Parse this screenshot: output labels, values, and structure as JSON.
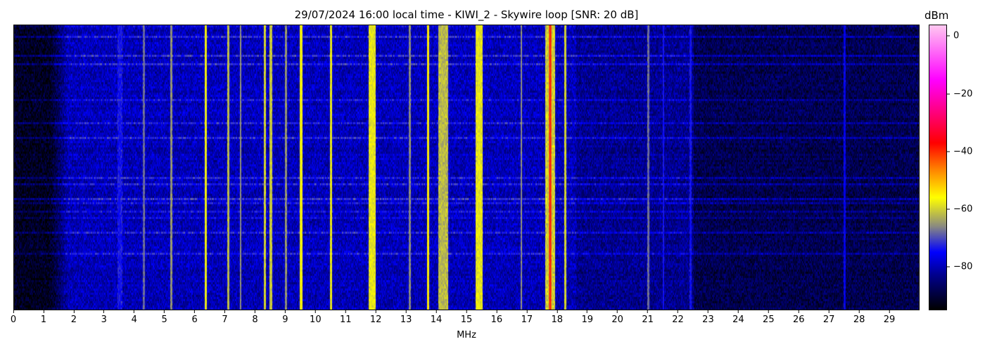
{
  "chart_data": {
    "type": "heatmap",
    "title": "29/07/2024 16:00 local time - KIWI_2 - Skywire loop [SNR: 20 dB]",
    "xlabel": "MHz",
    "colorbar_label": "dBm",
    "xlim": [
      0,
      30
    ],
    "x_ticks": [
      "0",
      "1",
      "2",
      "3",
      "4",
      "5",
      "6",
      "7",
      "8",
      "9",
      "10",
      "11",
      "12",
      "13",
      "14",
      "15",
      "16",
      "17",
      "18",
      "19",
      "20",
      "21",
      "22",
      "23",
      "24",
      "25",
      "26",
      "27",
      "28",
      "29"
    ],
    "color_range": [
      -95,
      4
    ],
    "colorbar_ticks": [
      "0",
      "-20",
      "-40",
      "-60",
      "-80"
    ],
    "colorbar_tick_values": [
      0,
      -20,
      -40,
      -60,
      -80
    ],
    "colormap": [
      {
        "value": -95,
        "color": "#000000"
      },
      {
        "value": -83,
        "color": "#00008c"
      },
      {
        "value": -75,
        "color": "#0000ff"
      },
      {
        "value": -66,
        "color": "#8a8a80"
      },
      {
        "value": -56,
        "color": "#ffff00"
      },
      {
        "value": -46,
        "color": "#ff8000"
      },
      {
        "value": -37,
        "color": "#ff0000"
      },
      {
        "value": -15,
        "color": "#ff00ff"
      },
      {
        "value": 4,
        "color": "#ffc8f0"
      }
    ],
    "noise_floor": [
      {
        "from_mhz": 0,
        "to_mhz": 1.8,
        "dbm": -92
      },
      {
        "from_mhz": 1.8,
        "to_mhz": 18.6,
        "dbm": -80
      },
      {
        "from_mhz": 18.6,
        "to_mhz": 22.5,
        "dbm": -83
      },
      {
        "from_mhz": 22.5,
        "to_mhz": 30,
        "dbm": -88
      }
    ],
    "signals": [
      {
        "mhz": 3.5,
        "width_mhz": 0.15,
        "dbm": -74
      },
      {
        "mhz": 4.3,
        "width_mhz": 0.03,
        "dbm": -68
      },
      {
        "mhz": 5.2,
        "width_mhz": 0.05,
        "dbm": -65
      },
      {
        "mhz": 6.35,
        "width_mhz": 0.05,
        "dbm": -57
      },
      {
        "mhz": 7.1,
        "width_mhz": 0.05,
        "dbm": -62
      },
      {
        "mhz": 7.5,
        "width_mhz": 0.03,
        "dbm": -66
      },
      {
        "mhz": 8.3,
        "width_mhz": 0.06,
        "dbm": -60
      },
      {
        "mhz": 8.5,
        "width_mhz": 0.06,
        "dbm": -61
      },
      {
        "mhz": 9.0,
        "width_mhz": 0.04,
        "dbm": -65
      },
      {
        "mhz": 9.5,
        "width_mhz": 0.08,
        "dbm": -57
      },
      {
        "mhz": 10.5,
        "width_mhz": 0.05,
        "dbm": -58
      },
      {
        "mhz": 11.85,
        "width_mhz": 0.2,
        "dbm": -58
      },
      {
        "mhz": 13.1,
        "width_mhz": 0.03,
        "dbm": -66
      },
      {
        "mhz": 13.7,
        "width_mhz": 0.05,
        "dbm": -55
      },
      {
        "mhz": 14.2,
        "width_mhz": 0.3,
        "dbm": -62
      },
      {
        "mhz": 15.4,
        "width_mhz": 0.2,
        "dbm": -58
      },
      {
        "mhz": 16.8,
        "width_mhz": 0.03,
        "dbm": -66
      },
      {
        "mhz": 17.75,
        "width_mhz": 0.3,
        "dbm": -60
      },
      {
        "mhz": 17.75,
        "width_mhz": 0.05,
        "dbm": -38
      },
      {
        "mhz": 18.25,
        "width_mhz": 0.04,
        "dbm": -60
      },
      {
        "mhz": 21.0,
        "width_mhz": 0.03,
        "dbm": -68
      },
      {
        "mhz": 21.5,
        "width_mhz": 0.03,
        "dbm": -74
      },
      {
        "mhz": 22.4,
        "width_mhz": 0.04,
        "dbm": -74
      },
      {
        "mhz": 27.5,
        "width_mhz": 0.05,
        "dbm": -76
      }
    ]
  }
}
